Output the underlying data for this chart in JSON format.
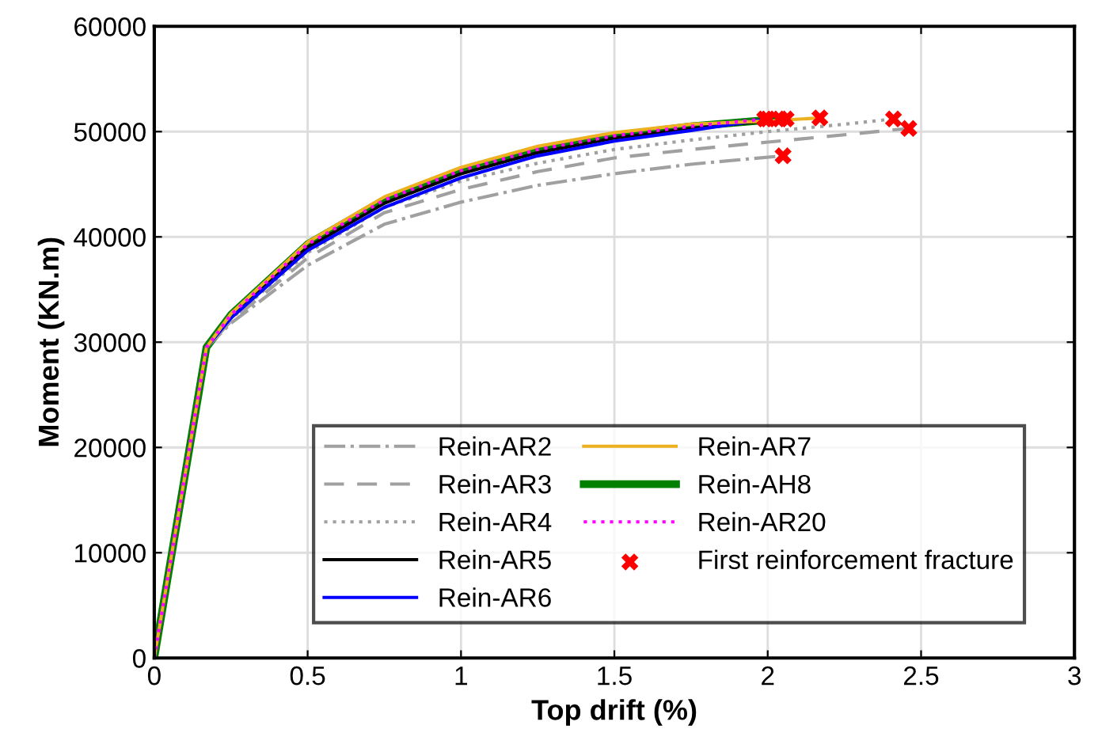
{
  "chart_data": {
    "type": "line",
    "xlabel": "Top drift (%)",
    "ylabel": "Moment (KN.m)",
    "xlim": [
      0,
      3
    ],
    "ylim": [
      0,
      60000
    ],
    "xticks": [
      0,
      0.5,
      1,
      1.5,
      2,
      2.5,
      3
    ],
    "yticks": [
      0,
      10000,
      20000,
      30000,
      40000,
      50000,
      60000
    ],
    "grid": true,
    "legend": "bottom right",
    "marker": "none",
    "series": [
      {
        "name": "Rein-AR2",
        "color": "#a0a0a0",
        "line_style": "dashdot",
        "x": [
          0,
          0.17,
          0.25,
          0.5,
          0.75,
          1,
          1.25,
          1.5,
          1.75,
          2.05
        ],
        "values": [
          0,
          29500,
          31800,
          37300,
          41200,
          43300,
          44900,
          46000,
          46900,
          47700
        ]
      },
      {
        "name": "Rein-AR3",
        "color": "#a0a0a0",
        "line_style": "dashed",
        "x": [
          0,
          0.17,
          0.25,
          0.5,
          0.75,
          1,
          1.25,
          1.5,
          1.75,
          2,
          2.25,
          2.46
        ],
        "values": [
          0,
          29500,
          32000,
          38000,
          42300,
          44500,
          46200,
          47500,
          48300,
          49000,
          49700,
          50300
        ]
      },
      {
        "name": "Rein-AR4",
        "color": "#a0a0a0",
        "line_style": "dotted",
        "x": [
          0,
          0.17,
          0.25,
          0.5,
          0.75,
          1,
          1.25,
          1.5,
          1.75,
          2,
          2.25,
          2.41
        ],
        "values": [
          0,
          29500,
          32200,
          38500,
          42800,
          45300,
          47000,
          48300,
          49200,
          50000,
          50700,
          51200
        ]
      },
      {
        "name": "Rein-AR5",
        "color": "#000000",
        "line_style": "solid",
        "x": [
          0,
          0.17,
          0.25,
          0.5,
          0.75,
          1,
          1.25,
          1.5,
          1.75,
          2.06
        ],
        "values": [
          0,
          29500,
          32500,
          39000,
          43200,
          46000,
          48000,
          49400,
          50300,
          51200
        ]
      },
      {
        "name": "Rein-AR6",
        "color": "#0000ff",
        "line_style": "solid",
        "x": [
          0,
          0.17,
          0.25,
          0.5,
          0.75,
          1,
          1.25,
          1.5,
          1.75,
          2.0
        ],
        "values": [
          0,
          29500,
          32300,
          38700,
          42800,
          45600,
          47700,
          49100,
          50100,
          51200
        ]
      },
      {
        "name": "Rein-AR7",
        "color": "#edb120",
        "line_style": "solid",
        "x": [
          0,
          0.17,
          0.25,
          0.5,
          0.75,
          1,
          1.25,
          1.5,
          1.75,
          2,
          2.17
        ],
        "values": [
          0,
          29500,
          32700,
          39500,
          43800,
          46600,
          48600,
          49900,
          50700,
          51000,
          51300
        ]
      },
      {
        "name": "Rein-AH8",
        "color": "#008000",
        "line_style": "solid",
        "x": [
          0,
          0.17,
          0.25,
          0.5,
          0.75,
          1,
          1.25,
          1.5,
          1.75,
          2.04
        ],
        "values": [
          0,
          29500,
          32600,
          39300,
          43500,
          46300,
          48300,
          49600,
          50500,
          51200
        ]
      },
      {
        "name": "Rein-AR20",
        "color": "#ff00ff",
        "line_style": "dotted",
        "x": [
          0,
          0.17,
          0.25,
          0.5,
          0.75,
          1,
          1.25,
          1.5,
          1.75,
          1.99
        ],
        "values": [
          0,
          29500,
          32600,
          39300,
          43500,
          46300,
          48300,
          49600,
          50500,
          51200
        ]
      },
      {
        "name": "First reinforcement fracture",
        "type": "scatter",
        "marker": "cross",
        "color": "#ff0000",
        "x": [
          1.99,
          2.0,
          2.04,
          2.06,
          2.17,
          2.05,
          2.41,
          2.46
        ],
        "values": [
          51200,
          51200,
          51200,
          51200,
          51300,
          47700,
          51200,
          50300
        ]
      }
    ]
  }
}
